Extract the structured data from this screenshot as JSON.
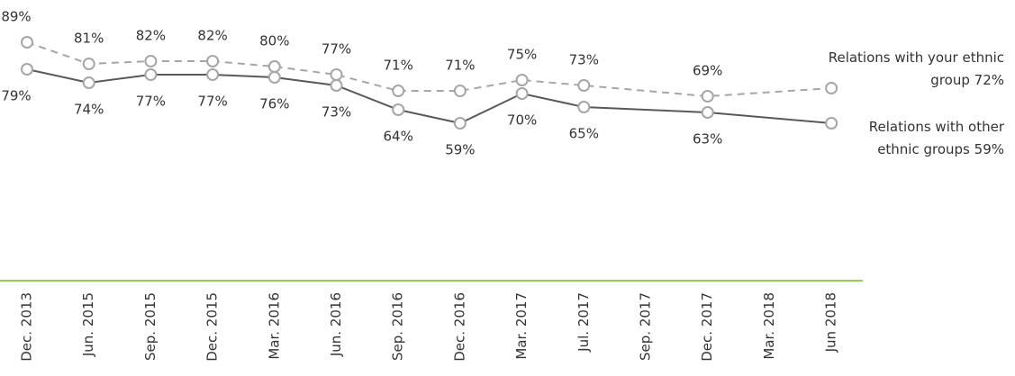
{
  "chart_data": {
    "type": "line",
    "categories": [
      "Dec. 2013",
      "Jun. 2015",
      "Sep. 2015",
      "Dec. 2015",
      "Mar. 2016",
      "Jun. 2016",
      "Sep. 2016",
      "Dec. 2016",
      "Mar. 2017",
      "Jul. 2017",
      "Sep. 2017",
      "Dec. 2017",
      "Mar. 2018",
      "Jun 2018"
    ],
    "series": [
      {
        "name": "Relations with your ethnic group",
        "color": "#a6a6a6",
        "dashed": true,
        "values": [
          89,
          81,
          82,
          82,
          80,
          77,
          71,
          71,
          75,
          73,
          null,
          69,
          null,
          72
        ],
        "value_labels": [
          "89%",
          "81%",
          "82%",
          "82%",
          "80%",
          "77%",
          "71%",
          "71%",
          "75%",
          "73%",
          null,
          "69%",
          null,
          "72%"
        ]
      },
      {
        "name": "Relations with other ethnic groups",
        "color": "#595959",
        "dashed": false,
        "values": [
          79,
          74,
          77,
          77,
          76,
          73,
          64,
          59,
          70,
          65,
          null,
          63,
          null,
          59
        ],
        "value_labels": [
          "79%",
          "74%",
          "77%",
          "77%",
          "76%",
          "73%",
          "64%",
          "59%",
          "70%",
          "65%",
          null,
          "63%",
          null,
          "59%"
        ]
      }
    ]
  }
}
